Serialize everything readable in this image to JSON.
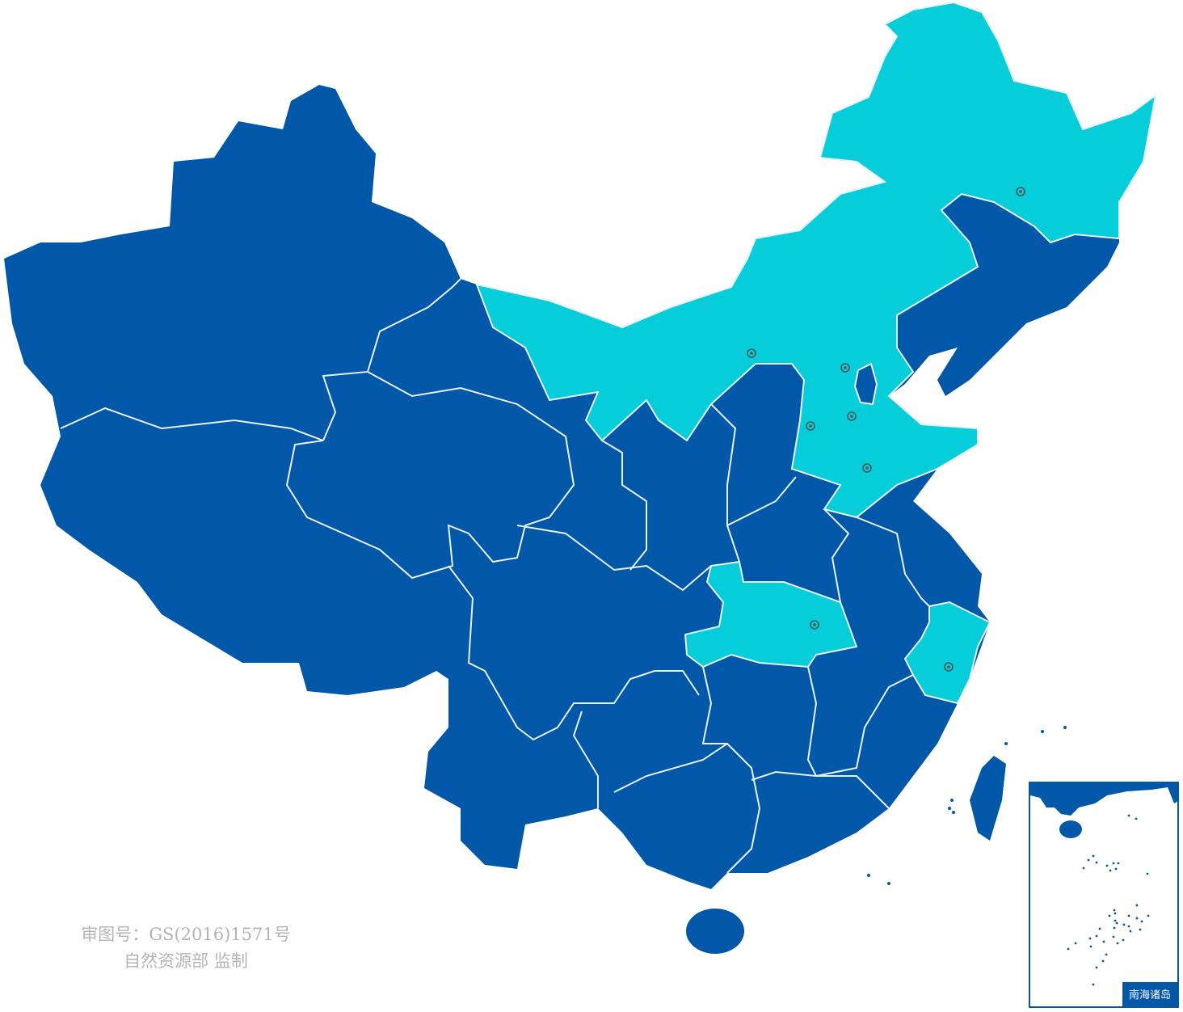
{
  "map": {
    "colors": {
      "base": "#0258a8",
      "highlight": "#05cdda",
      "border": "#e8f0f8",
      "marker": "#555555"
    },
    "marker_icon": "target-circle-icon",
    "marker_count": 8
  },
  "approval": {
    "line1": "审图号：GS(2016)1571号",
    "line2": "自然资源部 监制"
  },
  "inset": {
    "label": "南海诸岛"
  }
}
